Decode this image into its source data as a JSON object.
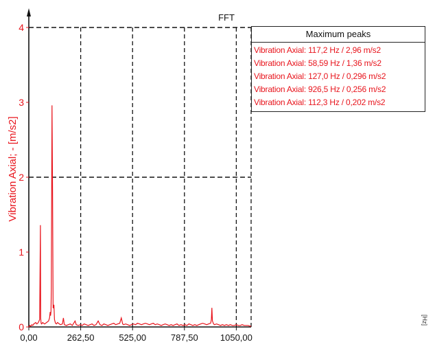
{
  "colors": {
    "signal": "#e8141c",
    "grid": "#111111",
    "axis": "#111111"
  },
  "edge_fragment": "[Hz]",
  "peaks_panel": {
    "header": "Maximum peaks",
    "rows": [
      "Vibration Axial: 117,2 Hz / 2,96 m/s2",
      "Vibration Axial: 58,59 Hz / 1,36 m/s2",
      "Vibration Axial: 127,0 Hz / 0,296 m/s2",
      "Vibration Axial: 926,5 Hz / 0,256 m/s2",
      "Vibration Axial: 112,3 Hz / 0,202 m/s2"
    ]
  },
  "chart_data": {
    "type": "line",
    "title": "FFT",
    "xlabel": "",
    "ylabel": "Vibration Axial; - [m/s2]",
    "xlim": [
      0,
      1125
    ],
    "ylim": [
      0,
      4
    ],
    "x_ticks": [
      "0,00",
      "262,50",
      "525,00",
      "787,50",
      "1050,00"
    ],
    "x_tick_values": [
      0,
      262.5,
      525,
      787.5,
      1050
    ],
    "y_ticks": [
      "0",
      "1",
      "2",
      "3",
      "4"
    ],
    "y_tick_values": [
      0,
      1,
      2,
      3,
      4
    ],
    "grid": true,
    "legend": "right",
    "series": [
      {
        "x": [
          0,
          5,
          10,
          15,
          20,
          25,
          30,
          35,
          40,
          45,
          50,
          55,
          57,
          58.59,
          60,
          62,
          65,
          70,
          75,
          80,
          85,
          90,
          95,
          100,
          105,
          108,
          110,
          112.3,
          114,
          117.2,
          120,
          123,
          127,
          130,
          135,
          140,
          145,
          150,
          160,
          170,
          175,
          180,
          190,
          200,
          210,
          220,
          234,
          240,
          250,
          262,
          270,
          280,
          290,
          300,
          310,
          320,
          330,
          340,
          351,
          360,
          370,
          380,
          390,
          400,
          410,
          420,
          430,
          440,
          450,
          460,
          468,
          475,
          480,
          490,
          500,
          510,
          520,
          530,
          540,
          550,
          560,
          570,
          580,
          590,
          600,
          610,
          620,
          630,
          640,
          650,
          660,
          670,
          680,
          690,
          700,
          710,
          720,
          730,
          740,
          750,
          760,
          770,
          780,
          790,
          800,
          810,
          820,
          830,
          840,
          850,
          860,
          870,
          880,
          890,
          900,
          910,
          920,
          924,
          926.5,
          929,
          935,
          940,
          950,
          960,
          970,
          980,
          990,
          1000,
          1010,
          1020,
          1030,
          1040,
          1050,
          1060,
          1070,
          1080,
          1090,
          1100,
          1110,
          1120,
          1125
        ],
        "y": [
          0,
          0.02,
          0.01,
          0.03,
          0.02,
          0.04,
          0.05,
          0.06,
          0.04,
          0.05,
          0.07,
          0.1,
          0.8,
          1.36,
          0.12,
          0.05,
          0.04,
          0.06,
          0.05,
          0.04,
          0.05,
          0.06,
          0.07,
          0.08,
          0.12,
          0.2,
          0.15,
          0.202,
          0.5,
          2.96,
          1.8,
          0.25,
          0.296,
          0.1,
          0.05,
          0.04,
          0.06,
          0.05,
          0.03,
          0.04,
          0.12,
          0.03,
          0.02,
          0.03,
          0.04,
          0.02,
          0.08,
          0.03,
          0.02,
          0.03,
          0.02,
          0.04,
          0.03,
          0.02,
          0.03,
          0.04,
          0.02,
          0.03,
          0.08,
          0.03,
          0.02,
          0.04,
          0.03,
          0.02,
          0.03,
          0.04,
          0.05,
          0.03,
          0.04,
          0.05,
          0.12,
          0.04,
          0.03,
          0.04,
          0.03,
          0.02,
          0.03,
          0.04,
          0.03,
          0.05,
          0.04,
          0.03,
          0.04,
          0.05,
          0.04,
          0.03,
          0.04,
          0.05,
          0.03,
          0.04,
          0.03,
          0.02,
          0.03,
          0.04,
          0.03,
          0.02,
          0.03,
          0.02,
          0.03,
          0.04,
          0.02,
          0.03,
          0.02,
          0.03,
          0.02,
          0.04,
          0.03,
          0.02,
          0.03,
          0.02,
          0.03,
          0.04,
          0.05,
          0.04,
          0.03,
          0.04,
          0.05,
          0.1,
          0.256,
          0.08,
          0.04,
          0.03,
          0.04,
          0.03,
          0.02,
          0.03,
          0.02,
          0.03,
          0.02,
          0.03,
          0.02,
          0.02,
          0.03,
          0.02,
          0.02,
          0.03,
          0.02,
          0.02,
          0.02,
          0.01,
          0.01
        ]
      }
    ]
  }
}
